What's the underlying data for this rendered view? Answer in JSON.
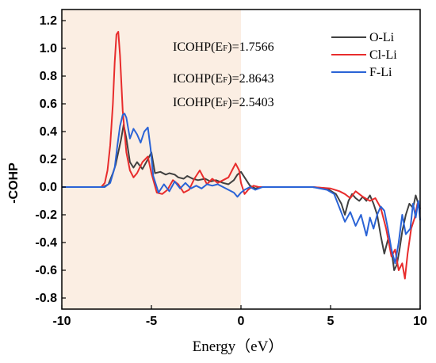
{
  "chart_data": {
    "type": "line",
    "title": "",
    "xlabel": "Energy（eV）",
    "ylabel": "-COHP",
    "xlim": [
      -10,
      10
    ],
    "ylim": [
      -0.88,
      1.28
    ],
    "xticks": [
      -10,
      -5,
      0,
      5,
      10
    ],
    "yticks": [
      -0.8,
      -0.6,
      -0.4,
      -0.2,
      0.0,
      0.2,
      0.4,
      0.6,
      0.8,
      1.0,
      1.2
    ],
    "ytick_labels": [
      "-0.8",
      "-0.6",
      "-0.4",
      "-0.2",
      "0.0",
      "0.2",
      "0.4",
      "0.6",
      "0.8",
      "1.0",
      "1.2"
    ],
    "xtick_labels": [
      "-10",
      "-5",
      "0",
      "5",
      "10"
    ],
    "shaded_region": {
      "x": [
        -10,
        0
      ],
      "color": "#fbeee3"
    },
    "legend_position": "top-right",
    "annotations": [
      {
        "text": "ICOHP(E",
        "sub": "F",
        "tail": ")=1.7566"
      },
      {
        "text": "ICOHP(E",
        "sub": "F",
        "tail": ")=2.8643"
      },
      {
        "text": "ICOHP(E",
        "sub": "F",
        "tail": ")=2.5403"
      }
    ],
    "series": [
      {
        "name": "O-Li",
        "color": "#404040",
        "x": [
          -10,
          -7.7,
          -7.4,
          -7.15,
          -7.0,
          -6.85,
          -6.7,
          -6.55,
          -6.4,
          -6.2,
          -6.0,
          -5.8,
          -5.5,
          -5.2,
          -5.0,
          -4.8,
          -4.5,
          -4.2,
          -4.0,
          -3.7,
          -3.5,
          -3.2,
          -3.0,
          -2.7,
          -2.4,
          -2.0,
          -1.7,
          -1.4,
          -1.0,
          -0.7,
          -0.4,
          -0.2,
          0.0,
          0.2,
          0.5,
          0.8,
          1.2,
          2,
          3,
          4,
          4.8,
          5.3,
          5.6,
          5.8,
          6.0,
          6.2,
          6.4,
          6.6,
          6.8,
          7.0,
          7.2,
          7.4,
          7.6,
          7.8,
          8.0,
          8.2,
          8.4,
          8.55,
          8.7,
          8.85,
          9.0,
          9.2,
          9.4,
          9.6,
          9.75,
          9.85,
          10.0
        ],
        "y": [
          0,
          0,
          0.02,
          0.1,
          0.16,
          0.25,
          0.34,
          0.45,
          0.35,
          0.18,
          0.14,
          0.18,
          0.13,
          0.2,
          0.25,
          0.1,
          0.11,
          0.09,
          0.1,
          0.09,
          0.07,
          0.06,
          0.08,
          0.06,
          0.05,
          0.06,
          0.04,
          0.05,
          0.03,
          0.02,
          0.05,
          0.09,
          0.11,
          0.07,
          0.01,
          -0.01,
          0,
          0,
          0,
          0,
          -0.01,
          -0.05,
          -0.12,
          -0.2,
          -0.1,
          -0.05,
          -0.08,
          -0.1,
          -0.07,
          -0.1,
          -0.06,
          -0.12,
          -0.2,
          -0.35,
          -0.48,
          -0.38,
          -0.45,
          -0.6,
          -0.56,
          -0.45,
          -0.32,
          -0.2,
          -0.12,
          -0.15,
          -0.06,
          -0.1,
          -0.16
        ]
      },
      {
        "name": "Cl-Li",
        "color": "#e82c2c",
        "x": [
          -10,
          -7.8,
          -7.6,
          -7.45,
          -7.3,
          -7.15,
          -7.05,
          -6.95,
          -6.85,
          -6.75,
          -6.6,
          -6.4,
          -6.2,
          -6.0,
          -5.8,
          -5.5,
          -5.2,
          -5.0,
          -4.7,
          -4.4,
          -4.1,
          -3.8,
          -3.5,
          -3.2,
          -2.9,
          -2.6,
          -2.3,
          -1.9,
          -1.6,
          -1.3,
          -1.0,
          -0.7,
          -0.5,
          -0.3,
          -0.1,
          0.0,
          0.2,
          0.4,
          0.7,
          1.0,
          1.5,
          2,
          3,
          4,
          5,
          5.5,
          5.8,
          6.1,
          6.4,
          6.8,
          7.2,
          7.5,
          7.8,
          8.1,
          8.4,
          8.6,
          8.8,
          9.0,
          9.15,
          9.3,
          9.5,
          9.7,
          9.85,
          10.0
        ],
        "y": [
          0,
          0,
          0.03,
          0.12,
          0.3,
          0.6,
          0.9,
          1.1,
          1.12,
          0.95,
          0.55,
          0.25,
          0.12,
          0.07,
          0.1,
          0.18,
          0.22,
          0.1,
          -0.04,
          -0.05,
          -0.02,
          0.05,
          0.02,
          -0.04,
          -0.02,
          0.06,
          0.12,
          0.02,
          0.06,
          0.03,
          0.05,
          0.07,
          0.12,
          0.17,
          0.12,
          0.03,
          -0.05,
          -0.02,
          0.01,
          0,
          0,
          0,
          0,
          0,
          -0.01,
          -0.03,
          -0.05,
          -0.08,
          -0.03,
          -0.07,
          -0.1,
          -0.08,
          -0.15,
          -0.3,
          -0.5,
          -0.45,
          -0.6,
          -0.55,
          -0.66,
          -0.48,
          -0.3,
          -0.22,
          -0.12,
          -0.15
        ]
      },
      {
        "name": "F-Li",
        "color": "#2a63d6",
        "x": [
          -10,
          -7.6,
          -7.3,
          -7.05,
          -6.9,
          -6.75,
          -6.6,
          -6.5,
          -6.4,
          -6.2,
          -6.0,
          -5.8,
          -5.6,
          -5.4,
          -5.2,
          -5.05,
          -4.9,
          -4.6,
          -4.3,
          -4.0,
          -3.7,
          -3.4,
          -3.1,
          -2.8,
          -2.5,
          -2.2,
          -1.9,
          -1.6,
          -1.3,
          -1.0,
          -0.7,
          -0.4,
          -0.2,
          0.0,
          0.2,
          0.5,
          0.8,
          1.2,
          2,
          3,
          4,
          4.8,
          5.2,
          5.5,
          5.8,
          6.1,
          6.4,
          6.7,
          7.0,
          7.2,
          7.4,
          7.6,
          7.8,
          8.0,
          8.2,
          8.4,
          8.6,
          8.8,
          9.0,
          9.2,
          9.45,
          9.6,
          9.75,
          9.9,
          10.0
        ],
        "y": [
          0,
          0,
          0.03,
          0.14,
          0.3,
          0.44,
          0.52,
          0.53,
          0.5,
          0.35,
          0.42,
          0.38,
          0.32,
          0.4,
          0.43,
          0.28,
          0.08,
          -0.04,
          0.02,
          -0.03,
          0.04,
          -0.01,
          0.03,
          -0.01,
          0.01,
          -0.01,
          0.02,
          0.01,
          0.02,
          0.0,
          -0.02,
          -0.04,
          -0.07,
          -0.04,
          -0.02,
          0,
          -0.02,
          0,
          0,
          0,
          0,
          -0.02,
          -0.05,
          -0.15,
          -0.25,
          -0.18,
          -0.28,
          -0.2,
          -0.35,
          -0.22,
          -0.3,
          -0.2,
          -0.14,
          -0.17,
          -0.3,
          -0.45,
          -0.55,
          -0.4,
          -0.2,
          -0.34,
          -0.3,
          -0.12,
          -0.22,
          -0.1,
          -0.24
        ]
      }
    ]
  }
}
